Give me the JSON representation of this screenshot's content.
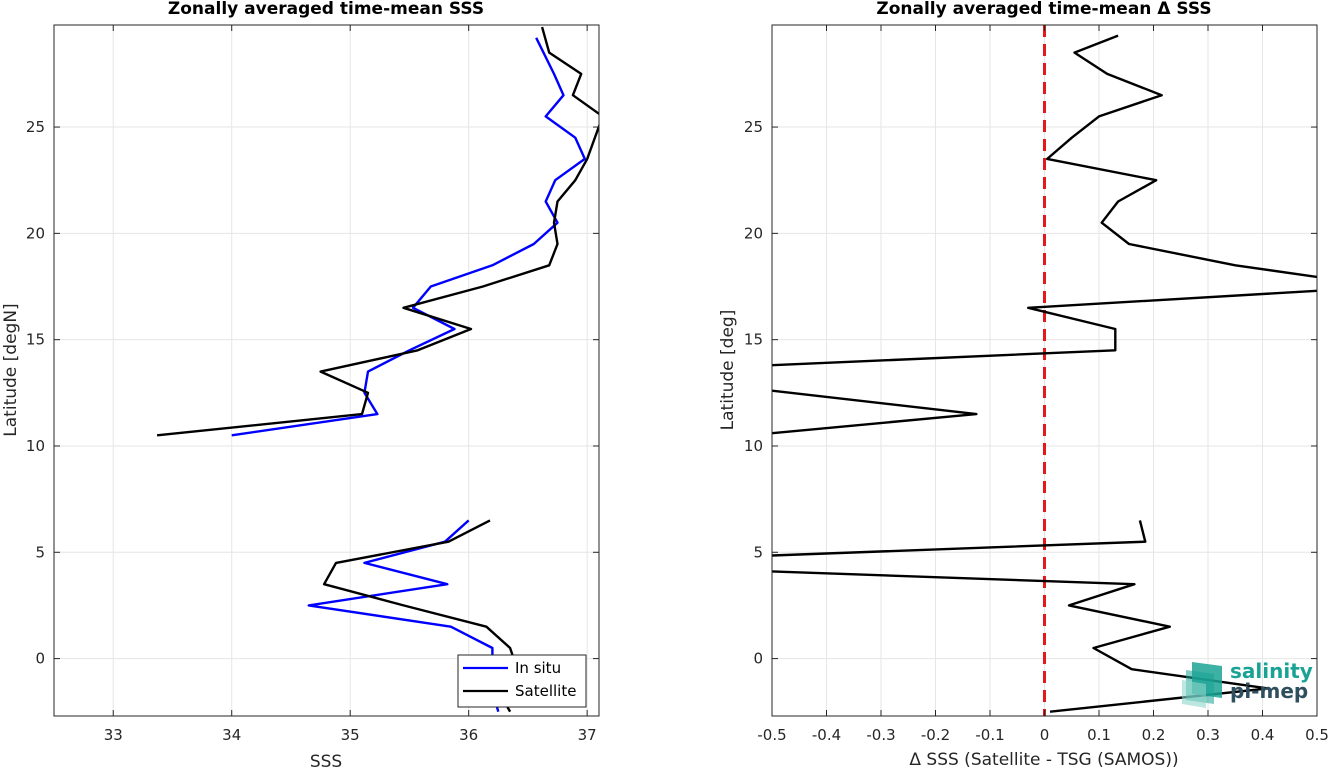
{
  "colors": {
    "in_situ": "#0000ff",
    "satellite": "#000000",
    "zero_line": "#e31a1c",
    "grid": "#e6e6e6",
    "logo_teal": "#1aa394",
    "logo_dark": "#2f4f5f"
  },
  "logo": {
    "line1": "salinity",
    "line2": "pi-mep"
  },
  "chart_data": [
    {
      "type": "line",
      "title": "Zonally averaged time-mean SSS",
      "xlabel": "SSS",
      "ylabel": "Latitude [degN]",
      "xlim": [
        32.5,
        37.1
      ],
      "ylim": [
        -2.7,
        29.8
      ],
      "xticks": [
        33,
        34,
        35,
        36,
        37
      ],
      "xtick_labels": [
        "33",
        "34",
        "35",
        "36",
        "37"
      ],
      "yticks": [
        0,
        5,
        10,
        15,
        20,
        25
      ],
      "ytick_labels": [
        "0",
        "5",
        "10",
        "15",
        "20",
        "25"
      ],
      "grid": true,
      "legend": {
        "location": "bottom-right",
        "entries": [
          "In situ",
          "Satellite"
        ]
      },
      "series": [
        {
          "name": "In situ",
          "color_key": "in_situ",
          "segments": [
            {
              "x": [
                36.25,
                36.2,
                36.2,
                35.85,
                34.65,
                35.82,
                35.12,
                35.8,
                36.0
              ],
              "y": [
                -2.5,
                -1.5,
                0.5,
                1.5,
                2.5,
                3.5,
                4.5,
                5.5,
                6.5
              ]
            },
            {
              "x": [
                34.0,
                35.23,
                35.12,
                35.15,
                35.5,
                35.88,
                35.53,
                35.68,
                36.2,
                36.55,
                36.75,
                36.65,
                36.73,
                36.98,
                36.9,
                36.65,
                36.8,
                36.72,
                36.57
              ],
              "y": [
                10.5,
                11.5,
                12.5,
                13.5,
                14.5,
                15.5,
                16.5,
                17.5,
                18.5,
                19.5,
                20.5,
                21.5,
                22.5,
                23.5,
                24.5,
                25.5,
                26.5,
                27.5,
                29.2
              ]
            }
          ]
        },
        {
          "name": "Satellite",
          "color_key": "satellite",
          "segments": [
            {
              "x": [
                36.35,
                36.25,
                36.38,
                36.35,
                36.15,
                35.45,
                34.78,
                34.88,
                35.83,
                36.18
              ],
              "y": [
                -2.5,
                -1.5,
                0,
                0.5,
                1.5,
                2.5,
                3.5,
                4.5,
                5.5,
                6.5
              ]
            },
            {
              "x": [
                33.37,
                35.1,
                35.15,
                34.75,
                35.57,
                36.02,
                35.45,
                36.12,
                36.68,
                36.75,
                36.72,
                36.75,
                36.9,
                37.0,
                37.13,
                36.88,
                36.95,
                36.68,
                36.62
              ],
              "y": [
                10.5,
                11.5,
                12.5,
                13.5,
                14.5,
                15.5,
                16.5,
                17.5,
                18.5,
                19.5,
                20.5,
                21.5,
                22.5,
                23.5,
                25.5,
                26.5,
                27.5,
                28.5,
                29.7
              ]
            }
          ]
        }
      ]
    },
    {
      "type": "line",
      "title": "Zonally averaged time-mean Δ SSS",
      "xlabel": "Δ SSS (Satellite - TSG (SAMOS))",
      "ylabel": "Latitude [deg]",
      "xlim": [
        -0.5,
        0.5
      ],
      "ylim": [
        -2.7,
        29.8
      ],
      "xticks": [
        -0.5,
        -0.4,
        -0.3,
        -0.2,
        -0.1,
        0,
        0.1,
        0.2,
        0.3,
        0.4,
        0.5
      ],
      "xtick_labels": [
        "-0.5",
        "-0.4",
        "-0.3",
        "-0.2",
        "-0.1",
        "0",
        "0.1",
        "0.2",
        "0.3",
        "0.4",
        "0.5"
      ],
      "yticks": [
        0,
        5,
        10,
        15,
        20,
        25
      ],
      "ytick_labels": [
        "0",
        "5",
        "10",
        "15",
        "20",
        "25"
      ],
      "grid": true,
      "reference_line": {
        "x": 0,
        "style": "dashed",
        "color_key": "zero_line"
      },
      "series": [
        {
          "name": "",
          "color_key": "satellite",
          "segments": [
            {
              "x": [
                0.01,
                0.41,
                0.16,
                0.09,
                0.23,
                0.045,
                0.165,
                -0.5
              ],
              "y": [
                -2.5,
                -1.4,
                -0.5,
                0.5,
                1.5,
                2.5,
                3.5,
                4.1
              ]
            },
            {
              "x": [
                -0.5,
                0.185,
                0.175
              ],
              "y": [
                4.85,
                5.5,
                6.5
              ]
            },
            {
              "x": [
                -0.5,
                -0.125,
                -0.5
              ],
              "y": [
                10.6,
                11.5,
                12.6
              ]
            },
            {
              "x": [
                -0.5,
                0.13,
                0.13,
                -0.03,
                0.5
              ],
              "y": [
                13.8,
                14.5,
                15.5,
                16.5,
                17.3
              ]
            },
            {
              "x": [
                0.5,
                0.35,
                0.155,
                0.105,
                0.135,
                0.205,
                0.005,
                0.05,
                0.1,
                0.215,
                0.115,
                0.055,
                0.135
              ],
              "y": [
                17.95,
                18.5,
                19.5,
                20.5,
                21.5,
                22.5,
                23.5,
                24.5,
                25.5,
                26.5,
                27.5,
                28.5,
                29.3
              ]
            }
          ]
        }
      ]
    }
  ]
}
